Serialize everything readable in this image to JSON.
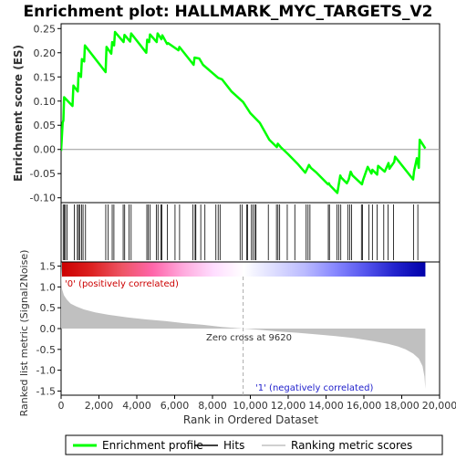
{
  "chart_data": {
    "type": "line",
    "title": "Enrichment plot: HALLMARK_MYC_TARGETS_V2",
    "enrichment_panel": {
      "ylabel": "Enrichment score (ES)",
      "ylim": [
        -0.11,
        0.26
      ],
      "yticks": [
        -0.1,
        -0.05,
        0.0,
        0.05,
        0.1,
        0.15,
        0.2,
        0.25
      ],
      "ytick_labels": [
        "-0.10",
        "-0.05",
        "0.00",
        "0.05",
        "0.10",
        "0.15",
        "0.20",
        "0.25"
      ],
      "series": [
        {
          "name": "Enrichment profile",
          "color": "#00ff00",
          "x": [
            0,
            80,
            120,
            160,
            600,
            650,
            880,
            920,
            1050,
            1100,
            1220,
            1260,
            2350,
            2400,
            2650,
            2700,
            2800,
            2850,
            3300,
            3350,
            3650,
            3700,
            4500,
            4550,
            4650,
            4700,
            5050,
            5100,
            5300,
            5350,
            5600,
            5650,
            6200,
            6250,
            7000,
            7050,
            7300,
            7500,
            8300,
            8500,
            9000,
            9620,
            10000,
            10500,
            11000,
            11400,
            11450,
            11600,
            12000,
            12500,
            12900,
            13000,
            13100,
            13200,
            13500,
            14100,
            14150,
            14200,
            14600,
            14650,
            14750,
            14800,
            15100,
            15200,
            15300,
            15400,
            15900,
            15950,
            16200,
            16400,
            16450,
            16700,
            16750,
            17100,
            17300,
            17350,
            17600,
            17650,
            18600,
            18650,
            18800,
            18900,
            18950,
            19250
          ],
          "y": [
            -0.003,
            0.055,
            0.06,
            0.108,
            0.09,
            0.132,
            0.12,
            0.158,
            0.15,
            0.187,
            0.182,
            0.215,
            0.16,
            0.212,
            0.198,
            0.222,
            0.215,
            0.243,
            0.222,
            0.237,
            0.223,
            0.24,
            0.2,
            0.227,
            0.222,
            0.238,
            0.222,
            0.24,
            0.228,
            0.236,
            0.218,
            0.22,
            0.205,
            0.212,
            0.175,
            0.19,
            0.188,
            0.175,
            0.148,
            0.145,
            0.12,
            0.098,
            0.075,
            0.055,
            0.02,
            0.005,
            0.012,
            0.005,
            -0.01,
            -0.03,
            -0.048,
            -0.04,
            -0.032,
            -0.038,
            -0.048,
            -0.072,
            -0.07,
            -0.074,
            -0.09,
            -0.078,
            -0.054,
            -0.058,
            -0.07,
            -0.062,
            -0.046,
            -0.054,
            -0.072,
            -0.064,
            -0.036,
            -0.05,
            -0.042,
            -0.052,
            -0.034,
            -0.046,
            -0.028,
            -0.04,
            -0.026,
            -0.015,
            -0.062,
            -0.045,
            -0.018,
            -0.038,
            0.02,
            0.002
          ]
        }
      ],
      "zero_line": 0.0
    },
    "hits_panel": {
      "series_name": "Hits",
      "hit_positions": [
        110,
        170,
        230,
        320,
        700,
        860,
        920,
        990,
        1080,
        1160,
        1290,
        2360,
        2490,
        2700,
        2790,
        3280,
        3360,
        3590,
        3700,
        4530,
        4600,
        4700,
        5030,
        5120,
        5280,
        5330,
        5620,
        6020,
        6260,
        6970,
        7080,
        7120,
        7380,
        7600,
        8180,
        8300,
        8400,
        9460,
        9560,
        9800,
        9860,
        10060,
        10150,
        10250,
        10300,
        10950,
        11380,
        11460,
        11550,
        11950,
        12350,
        12950,
        13050,
        13150,
        14120,
        14180,
        14580,
        14680,
        14780,
        15150,
        15250,
        15350,
        15870,
        15930,
        16270,
        16450,
        16700,
        17050,
        17280,
        17570,
        18620,
        18850
      ]
    },
    "metric_panel": {
      "series_name": "Ranking metric scores",
      "ylabel": "Ranked list metric (Signal2Noise)",
      "ylim": [
        -1.6,
        1.6
      ],
      "yticks": [
        -1.5,
        -1.0,
        -0.5,
        0.0,
        0.5,
        1.0,
        1.5
      ],
      "ytick_labels": [
        "-1.5",
        "-1.0",
        "-0.5",
        "0.0",
        "0.5",
        "1.0",
        "1.5"
      ],
      "fill_color": "#c0c0c0",
      "profile_x": [
        0,
        50,
        150,
        300,
        500,
        800,
        1200,
        1800,
        2500,
        3500,
        4500,
        5500,
        6500,
        7500,
        8500,
        9620,
        10500,
        11500,
        12500,
        13500,
        14500,
        15500,
        16500,
        17300,
        17800,
        18200,
        18600,
        18900,
        19100,
        19200,
        19250
      ],
      "profile_y": [
        1.45,
        0.95,
        0.8,
        0.7,
        0.6,
        0.53,
        0.46,
        0.39,
        0.33,
        0.27,
        0.22,
        0.18,
        0.13,
        0.09,
        0.04,
        0.0,
        -0.03,
        -0.07,
        -0.1,
        -0.14,
        -0.18,
        -0.23,
        -0.3,
        -0.37,
        -0.43,
        -0.5,
        -0.6,
        -0.72,
        -0.9,
        -1.15,
        -1.45
      ],
      "pos_label": "'0' (positively correlated)",
      "neg_label": "'1' (negatively correlated)",
      "zero_cross_label": "Zero cross at 9620",
      "zero_cross": 9620
    },
    "colorbar": {
      "stops": [
        "#cc0000",
        "#dd2222",
        "#ee5566",
        "#ff66aa",
        "#ffaadd",
        "#ffddff",
        "#ffffff",
        "#ddddff",
        "#bbbbff",
        "#8888ff",
        "#5555ee",
        "#2222cc",
        "#0000aa"
      ]
    },
    "xaxis": {
      "label": "Rank in Ordered Dataset",
      "xlim": [
        0,
        20000
      ],
      "xticks": [
        0,
        2000,
        4000,
        6000,
        8000,
        10000,
        12000,
        14000,
        16000,
        18000,
        20000
      ],
      "xtick_labels": [
        "0",
        "2,000",
        "4,000",
        "6,000",
        "8,000",
        "10,000",
        "12,000",
        "14,000",
        "16,000",
        "18,000",
        "20,000"
      ],
      "n_items": 19250
    },
    "legend": {
      "position": "bottom",
      "items": [
        {
          "label": "Enrichment profile",
          "color": "#00ff00",
          "style": "line-thick"
        },
        {
          "label": "Hits",
          "color": "#000000",
          "style": "line"
        },
        {
          "label": "Ranking metric scores",
          "color": "#c0c0c0",
          "style": "line"
        }
      ]
    }
  }
}
